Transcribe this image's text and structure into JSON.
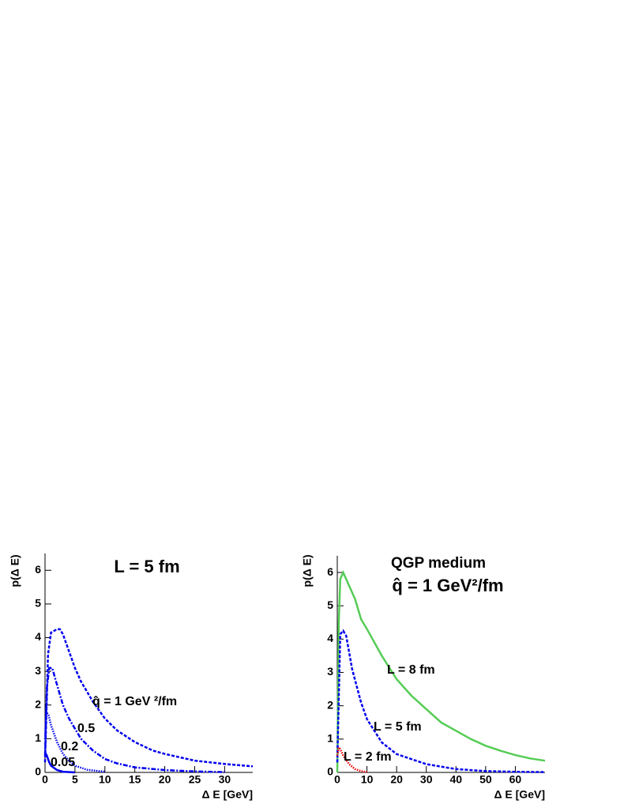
{
  "chart_data": [
    {
      "type": "line",
      "title": "L = 5 fm",
      "x_label": "Δ E [GeV]",
      "y_label": "p(Δ E)",
      "xlim": [
        0,
        34.7
      ],
      "ylim": [
        0,
        6.5
      ],
      "xticks": [
        0,
        5,
        10,
        15,
        20,
        25,
        30
      ],
      "yticks": [
        0,
        1,
        2,
        3,
        4,
        5,
        6
      ],
      "series": [
        {
          "name": "q̂ = 1 GeV ²/fm",
          "color": "#0000ee",
          "dash": "4,2",
          "x": [
            0,
            0.5,
            1,
            2,
            2.5,
            3,
            4,
            5,
            6,
            7,
            8,
            10,
            12,
            15,
            18,
            20,
            25,
            30,
            34.7
          ],
          "values": [
            0.3,
            3.5,
            4.15,
            4.25,
            4.25,
            4.1,
            3.6,
            3.1,
            2.7,
            2.4,
            2.1,
            1.6,
            1.25,
            0.9,
            0.65,
            0.55,
            0.35,
            0.25,
            0.18
          ]
        },
        {
          "name": "0.5",
          "color": "#0000ee",
          "dash": "6,2,2,2",
          "x": [
            0,
            0.3,
            0.7,
            1.2,
            2,
            3,
            4,
            5,
            6,
            8,
            10,
            12,
            15,
            20,
            25,
            30
          ],
          "values": [
            0.5,
            2.5,
            3.1,
            3.1,
            2.6,
            2.0,
            1.6,
            1.3,
            1.0,
            0.65,
            0.4,
            0.27,
            0.15,
            0.07,
            0.03,
            0.01
          ]
        },
        {
          "name": "0.2",
          "color": "#0000ee",
          "dash": "1.5,1.5",
          "x": [
            0,
            0.2,
            0.6,
            1,
            2,
            3,
            4,
            5,
            7,
            10
          ],
          "values": [
            1.0,
            1.8,
            1.7,
            1.4,
            0.9,
            0.55,
            0.35,
            0.2,
            0.08,
            0.02
          ]
        },
        {
          "name": "0.05",
          "color": "#0000ee",
          "dash": "none",
          "x": [
            0,
            0.3,
            0.7,
            1,
            2,
            3,
            5
          ],
          "values": [
            0.6,
            0.5,
            0.3,
            0.2,
            0.07,
            0.02,
            0
          ]
        }
      ]
    },
    {
      "type": "line",
      "title": "QGP medium",
      "subtitle": "q̂ = 1 GeV²/fm",
      "x_label": "Δ E [GeV]",
      "y_label": "p(Δ E)",
      "xlim": [
        0,
        70
      ],
      "ylim": [
        0,
        6.5
      ],
      "xticks": [
        0,
        10,
        20,
        30,
        40,
        50,
        60
      ],
      "yticks": [
        0,
        1,
        2,
        3,
        4,
        5,
        6
      ],
      "series": [
        {
          "name": "L = 8 fm",
          "color": "#55cc55",
          "dash": "none",
          "x": [
            0,
            0.5,
            1,
            2,
            4,
            6,
            8,
            10,
            15,
            20,
            25,
            30,
            35,
            40,
            45,
            50,
            55,
            60,
            65,
            70
          ],
          "values": [
            0,
            4.5,
            5.8,
            6.0,
            5.6,
            5.2,
            4.6,
            4.3,
            3.5,
            2.8,
            2.3,
            1.9,
            1.5,
            1.25,
            1.0,
            0.8,
            0.65,
            0.52,
            0.42,
            0.35
          ]
        },
        {
          "name": "L = 5 fm",
          "color": "#0000ee",
          "dash": "4,2",
          "x": [
            0,
            1,
            2,
            3,
            5,
            8,
            10,
            15,
            20,
            30,
            40,
            50,
            60,
            70
          ],
          "values": [
            0.3,
            4.15,
            4.25,
            4.1,
            3.1,
            2.1,
            1.6,
            0.9,
            0.55,
            0.25,
            0.1,
            0.04,
            0.02,
            0.01
          ]
        },
        {
          "name": "L = 2 fm",
          "color": "#ee0000",
          "dash": "1.5,1.5",
          "x": [
            0,
            0.5,
            1,
            2,
            4,
            6,
            8,
            10
          ],
          "values": [
            0.5,
            0.75,
            0.7,
            0.5,
            0.25,
            0.1,
            0.04,
            0.01
          ]
        }
      ]
    }
  ]
}
